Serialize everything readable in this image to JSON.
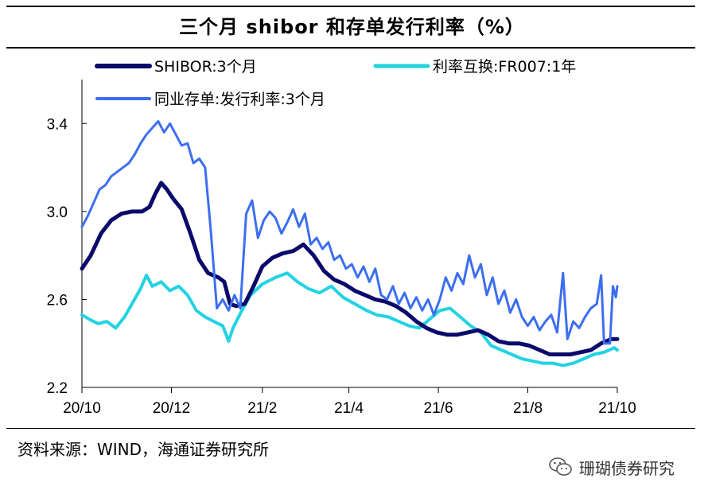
{
  "title": "三个月 shibor 和存单发行利率（%）",
  "source": "资料来源：WIND，海通证券研究所",
  "watermark": {
    "text": "珊瑚债券研究",
    "icon": "wechat-icon"
  },
  "chart_data": {
    "type": "line",
    "title": "三个月 shibor 和存单发行利率（%）",
    "xlabel": "",
    "ylabel": "",
    "x_range": [
      "2020-10-01",
      "2021-10-01"
    ],
    "ylim": [
      2.2,
      3.6
    ],
    "y_ticks": [
      2.2,
      2.6,
      3.0,
      3.4
    ],
    "y_tick_labels": [
      "2.2",
      "2.6",
      "3.0",
      "3.4"
    ],
    "x_ticks": [
      "2020-10-01",
      "2020-12-01",
      "2021-02-01",
      "2021-04-01",
      "2021-06-01",
      "2021-08-01",
      "2021-10-01"
    ],
    "x_tick_labels": [
      "20/10",
      "20/12",
      "21/2",
      "21/4",
      "21/6",
      "21/8",
      "21/10"
    ],
    "grid": false,
    "legend_position": "top",
    "series": [
      {
        "name": "SHIBOR:3个月",
        "color": "#0a0a6b",
        "points": [
          [
            "2020-10-01",
            2.74
          ],
          [
            "2020-10-07",
            2.8
          ],
          [
            "2020-10-14",
            2.9
          ],
          [
            "2020-10-21",
            2.96
          ],
          [
            "2020-10-28",
            2.99
          ],
          [
            "2020-11-04",
            3.0
          ],
          [
            "2020-11-11",
            3.0
          ],
          [
            "2020-11-16",
            3.02
          ],
          [
            "2020-11-20",
            3.08
          ],
          [
            "2020-11-24",
            3.13
          ],
          [
            "2020-11-28",
            3.1
          ],
          [
            "2020-12-02",
            3.06
          ],
          [
            "2020-12-08",
            3.01
          ],
          [
            "2020-12-14",
            2.9
          ],
          [
            "2020-12-20",
            2.78
          ],
          [
            "2020-12-26",
            2.72
          ],
          [
            "2021-01-02",
            2.7
          ],
          [
            "2021-01-06",
            2.68
          ],
          [
            "2021-01-10",
            2.58
          ],
          [
            "2021-01-14",
            2.57
          ],
          [
            "2021-01-20",
            2.58
          ],
          [
            "2021-01-26",
            2.66
          ],
          [
            "2021-02-01",
            2.75
          ],
          [
            "2021-02-08",
            2.79
          ],
          [
            "2021-02-15",
            2.81
          ],
          [
            "2021-02-22",
            2.82
          ],
          [
            "2021-03-01",
            2.85
          ],
          [
            "2021-03-08",
            2.8
          ],
          [
            "2021-03-15",
            2.73
          ],
          [
            "2021-03-22",
            2.69
          ],
          [
            "2021-03-29",
            2.67
          ],
          [
            "2021-04-05",
            2.64
          ],
          [
            "2021-04-12",
            2.62
          ],
          [
            "2021-04-19",
            2.6
          ],
          [
            "2021-04-26",
            2.59
          ],
          [
            "2021-05-03",
            2.57
          ],
          [
            "2021-05-10",
            2.54
          ],
          [
            "2021-05-17",
            2.5
          ],
          [
            "2021-05-24",
            2.47
          ],
          [
            "2021-05-31",
            2.45
          ],
          [
            "2021-06-07",
            2.44
          ],
          [
            "2021-06-14",
            2.44
          ],
          [
            "2021-06-21",
            2.45
          ],
          [
            "2021-06-28",
            2.46
          ],
          [
            "2021-07-05",
            2.44
          ],
          [
            "2021-07-12",
            2.41
          ],
          [
            "2021-07-19",
            2.4
          ],
          [
            "2021-07-26",
            2.4
          ],
          [
            "2021-08-02",
            2.39
          ],
          [
            "2021-08-09",
            2.37
          ],
          [
            "2021-08-16",
            2.35
          ],
          [
            "2021-08-23",
            2.35
          ],
          [
            "2021-08-30",
            2.35
          ],
          [
            "2021-09-06",
            2.36
          ],
          [
            "2021-09-13",
            2.37
          ],
          [
            "2021-09-20",
            2.4
          ],
          [
            "2021-09-27",
            2.42
          ],
          [
            "2021-10-01",
            2.42
          ]
        ]
      },
      {
        "name": "利率互换:FR007:1年",
        "color": "#22d3e2",
        "points": [
          [
            "2020-10-01",
            2.53
          ],
          [
            "2020-10-06",
            2.51
          ],
          [
            "2020-10-12",
            2.49
          ],
          [
            "2020-10-18",
            2.5
          ],
          [
            "2020-10-24",
            2.47
          ],
          [
            "2020-10-30",
            2.52
          ],
          [
            "2020-11-05",
            2.59
          ],
          [
            "2020-11-10",
            2.65
          ],
          [
            "2020-11-14",
            2.71
          ],
          [
            "2020-11-18",
            2.66
          ],
          [
            "2020-11-24",
            2.68
          ],
          [
            "2020-11-30",
            2.64
          ],
          [
            "2020-12-06",
            2.66
          ],
          [
            "2020-12-12",
            2.62
          ],
          [
            "2020-12-18",
            2.55
          ],
          [
            "2020-12-24",
            2.52
          ],
          [
            "2020-12-30",
            2.5
          ],
          [
            "2021-01-05",
            2.48
          ],
          [
            "2021-01-09",
            2.41
          ],
          [
            "2021-01-12",
            2.47
          ],
          [
            "2021-01-18",
            2.55
          ],
          [
            "2021-01-24",
            2.62
          ],
          [
            "2021-02-01",
            2.67
          ],
          [
            "2021-02-10",
            2.7
          ],
          [
            "2021-02-18",
            2.72
          ],
          [
            "2021-02-25",
            2.68
          ],
          [
            "2021-03-04",
            2.65
          ],
          [
            "2021-03-12",
            2.63
          ],
          [
            "2021-03-20",
            2.66
          ],
          [
            "2021-03-28",
            2.61
          ],
          [
            "2021-04-05",
            2.58
          ],
          [
            "2021-04-13",
            2.55
          ],
          [
            "2021-04-20",
            2.53
          ],
          [
            "2021-04-28",
            2.52
          ],
          [
            "2021-05-05",
            2.5
          ],
          [
            "2021-05-12",
            2.48
          ],
          [
            "2021-05-19",
            2.47
          ],
          [
            "2021-05-26",
            2.51
          ],
          [
            "2021-06-02",
            2.55
          ],
          [
            "2021-06-09",
            2.56
          ],
          [
            "2021-06-16",
            2.52
          ],
          [
            "2021-06-23",
            2.48
          ],
          [
            "2021-06-30",
            2.45
          ],
          [
            "2021-07-07",
            2.39
          ],
          [
            "2021-07-14",
            2.37
          ],
          [
            "2021-07-21",
            2.35
          ],
          [
            "2021-07-28",
            2.33
          ],
          [
            "2021-08-04",
            2.32
          ],
          [
            "2021-08-11",
            2.31
          ],
          [
            "2021-08-18",
            2.31
          ],
          [
            "2021-08-25",
            2.3
          ],
          [
            "2021-09-01",
            2.31
          ],
          [
            "2021-09-08",
            2.33
          ],
          [
            "2021-09-15",
            2.35
          ],
          [
            "2021-09-22",
            2.36
          ],
          [
            "2021-09-29",
            2.38
          ],
          [
            "2021-10-01",
            2.37
          ]
        ]
      },
      {
        "name": "同业存单:发行利率:3个月",
        "color": "#3c6ef0",
        "points": [
          [
            "2020-10-01",
            2.93
          ],
          [
            "2020-10-05",
            2.98
          ],
          [
            "2020-10-09",
            3.04
          ],
          [
            "2020-10-13",
            3.1
          ],
          [
            "2020-10-17",
            3.12
          ],
          [
            "2020-10-21",
            3.16
          ],
          [
            "2020-10-25",
            3.18
          ],
          [
            "2020-10-29",
            3.2
          ],
          [
            "2020-11-02",
            3.22
          ],
          [
            "2020-11-06",
            3.26
          ],
          [
            "2020-11-10",
            3.31
          ],
          [
            "2020-11-14",
            3.35
          ],
          [
            "2020-11-18",
            3.38
          ],
          [
            "2020-11-22",
            3.41
          ],
          [
            "2020-11-26",
            3.36
          ],
          [
            "2020-11-30",
            3.4
          ],
          [
            "2020-12-04",
            3.35
          ],
          [
            "2020-12-08",
            3.3
          ],
          [
            "2020-12-12",
            3.31
          ],
          [
            "2020-12-16",
            3.22
          ],
          [
            "2020-12-20",
            3.24
          ],
          [
            "2020-12-24",
            3.2
          ],
          [
            "2020-12-28",
            2.9
          ],
          [
            "2021-01-01",
            2.56
          ],
          [
            "2021-01-05",
            2.6
          ],
          [
            "2021-01-09",
            2.55
          ],
          [
            "2021-01-13",
            2.62
          ],
          [
            "2021-01-17",
            2.56
          ],
          [
            "2021-01-21",
            2.99
          ],
          [
            "2021-01-25",
            3.05
          ],
          [
            "2021-01-29",
            2.88
          ],
          [
            "2021-02-02",
            2.96
          ],
          [
            "2021-02-06",
            3.0
          ],
          [
            "2021-02-10",
            2.97
          ],
          [
            "2021-02-14",
            2.9
          ],
          [
            "2021-02-18",
            2.95
          ],
          [
            "2021-02-22",
            3.01
          ],
          [
            "2021-02-26",
            2.93
          ],
          [
            "2021-03-02",
            2.99
          ],
          [
            "2021-03-06",
            2.85
          ],
          [
            "2021-03-10",
            2.88
          ],
          [
            "2021-03-14",
            2.83
          ],
          [
            "2021-03-18",
            2.86
          ],
          [
            "2021-03-22",
            2.78
          ],
          [
            "2021-03-26",
            2.8
          ],
          [
            "2021-03-30",
            2.74
          ],
          [
            "2021-04-03",
            2.76
          ],
          [
            "2021-04-07",
            2.7
          ],
          [
            "2021-04-11",
            2.75
          ],
          [
            "2021-04-15",
            2.68
          ],
          [
            "2021-04-19",
            2.74
          ],
          [
            "2021-04-23",
            2.62
          ],
          [
            "2021-04-27",
            2.6
          ],
          [
            "2021-05-01",
            2.66
          ],
          [
            "2021-05-05",
            2.58
          ],
          [
            "2021-05-09",
            2.63
          ],
          [
            "2021-05-13",
            2.56
          ],
          [
            "2021-05-17",
            2.61
          ],
          [
            "2021-05-21",
            2.55
          ],
          [
            "2021-05-25",
            2.6
          ],
          [
            "2021-05-29",
            2.53
          ],
          [
            "2021-06-02",
            2.6
          ],
          [
            "2021-06-06",
            2.7
          ],
          [
            "2021-06-10",
            2.64
          ],
          [
            "2021-06-14",
            2.72
          ],
          [
            "2021-06-18",
            2.67
          ],
          [
            "2021-06-22",
            2.8
          ],
          [
            "2021-06-26",
            2.7
          ],
          [
            "2021-06-30",
            2.76
          ],
          [
            "2021-07-04",
            2.62
          ],
          [
            "2021-07-08",
            2.7
          ],
          [
            "2021-07-12",
            2.58
          ],
          [
            "2021-07-16",
            2.64
          ],
          [
            "2021-07-20",
            2.54
          ],
          [
            "2021-07-24",
            2.6
          ],
          [
            "2021-07-28",
            2.52
          ],
          [
            "2021-08-01",
            2.48
          ],
          [
            "2021-08-05",
            2.52
          ],
          [
            "2021-08-09",
            2.46
          ],
          [
            "2021-08-13",
            2.5
          ],
          [
            "2021-08-17",
            2.53
          ],
          [
            "2021-08-21",
            2.45
          ],
          [
            "2021-08-25",
            2.72
          ],
          [
            "2021-08-28",
            2.42
          ],
          [
            "2021-09-01",
            2.5
          ],
          [
            "2021-09-05",
            2.47
          ],
          [
            "2021-09-09",
            2.52
          ],
          [
            "2021-09-13",
            2.56
          ],
          [
            "2021-09-17",
            2.58
          ],
          [
            "2021-09-20",
            2.71
          ],
          [
            "2021-09-22",
            2.4
          ],
          [
            "2021-09-26",
            2.4
          ],
          [
            "2021-09-28",
            2.66
          ],
          [
            "2021-09-30",
            2.61
          ],
          [
            "2021-10-01",
            2.66
          ]
        ]
      }
    ]
  }
}
